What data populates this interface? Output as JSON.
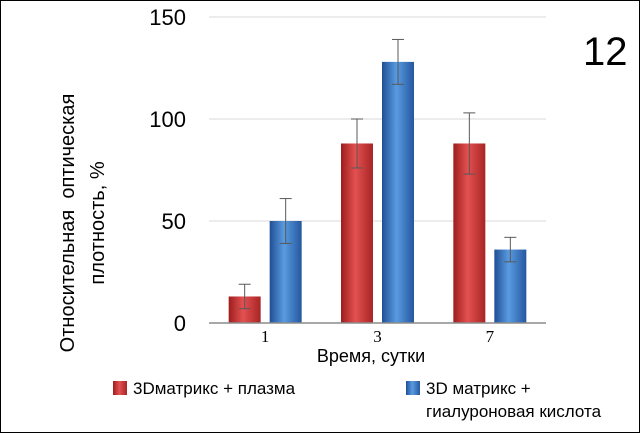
{
  "panel_label": "12",
  "chart_data": {
    "type": "bar",
    "categories": [
      "1",
      "3",
      "7"
    ],
    "series": [
      {
        "name": "3Dматрикс + плазма",
        "values": [
          13,
          88,
          88
        ],
        "errors": [
          6,
          12,
          15
        ],
        "color": "#d33b3b"
      },
      {
        "name": "3D матрикс + гиалуроновая кислота",
        "values": [
          50,
          128,
          36
        ],
        "errors": [
          11,
          11,
          6
        ],
        "color": "#3f7fcf"
      }
    ],
    "xlabel": "Время, сутки",
    "ylabel_lines": [
      "Относительная  оптическая",
      "плотность, %"
    ],
    "ylim": [
      0,
      150
    ],
    "yticks": [
      0,
      50,
      100,
      150
    ],
    "grid": true,
    "legend_position": "bottom",
    "legend_lines": [
      [
        "3Dматрикс + плазма"
      ],
      [
        "3D матрикс +",
        "гиалуроновая кислота"
      ]
    ]
  }
}
